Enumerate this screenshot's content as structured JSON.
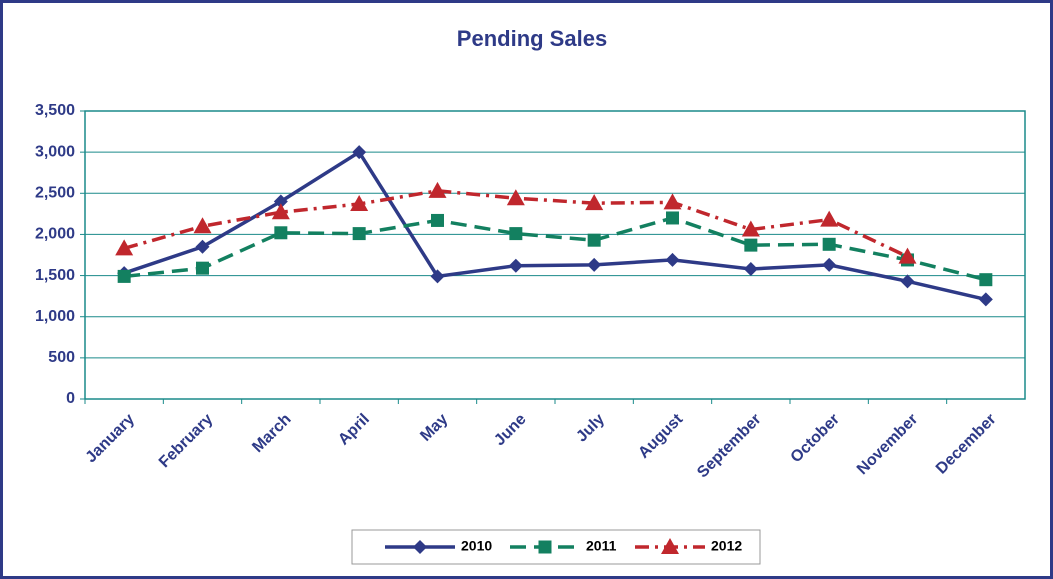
{
  "chart_data": {
    "type": "line",
    "title": "Pending Sales",
    "categories": [
      "January",
      "February",
      "March",
      "April",
      "May",
      "June",
      "July",
      "August",
      "September",
      "October",
      "November",
      "December"
    ],
    "series": [
      {
        "name": "2010",
        "color": "#2e3a87",
        "values": [
          1530,
          1850,
          2400,
          3000,
          1490,
          1620,
          1630,
          1690,
          1580,
          1630,
          1430,
          1210
        ]
      },
      {
        "name": "2011",
        "color": "#138060",
        "values": [
          1490,
          1590,
          2020,
          2010,
          2170,
          2010,
          1930,
          2200,
          1870,
          1880,
          1690,
          1450
        ]
      },
      {
        "name": "2012",
        "color": "#c0272d",
        "values": [
          1830,
          2100,
          2270,
          2370,
          2530,
          2440,
          2380,
          2390,
          2060,
          2180,
          1730,
          null
        ]
      }
    ],
    "ylim": [
      0,
      3500
    ],
    "yticks": [
      0,
      500,
      {
        "value": 1000,
        "label": "1,000"
      },
      {
        "value": 1500,
        "label": "1,500"
      },
      {
        "value": 2000,
        "label": "2,000"
      },
      {
        "value": 2500,
        "label": "2,500"
      },
      {
        "value": 3000,
        "label": "3,000"
      },
      {
        "value": 3500,
        "label": "3,500"
      }
    ],
    "grid": true,
    "legend": "bottom"
  }
}
